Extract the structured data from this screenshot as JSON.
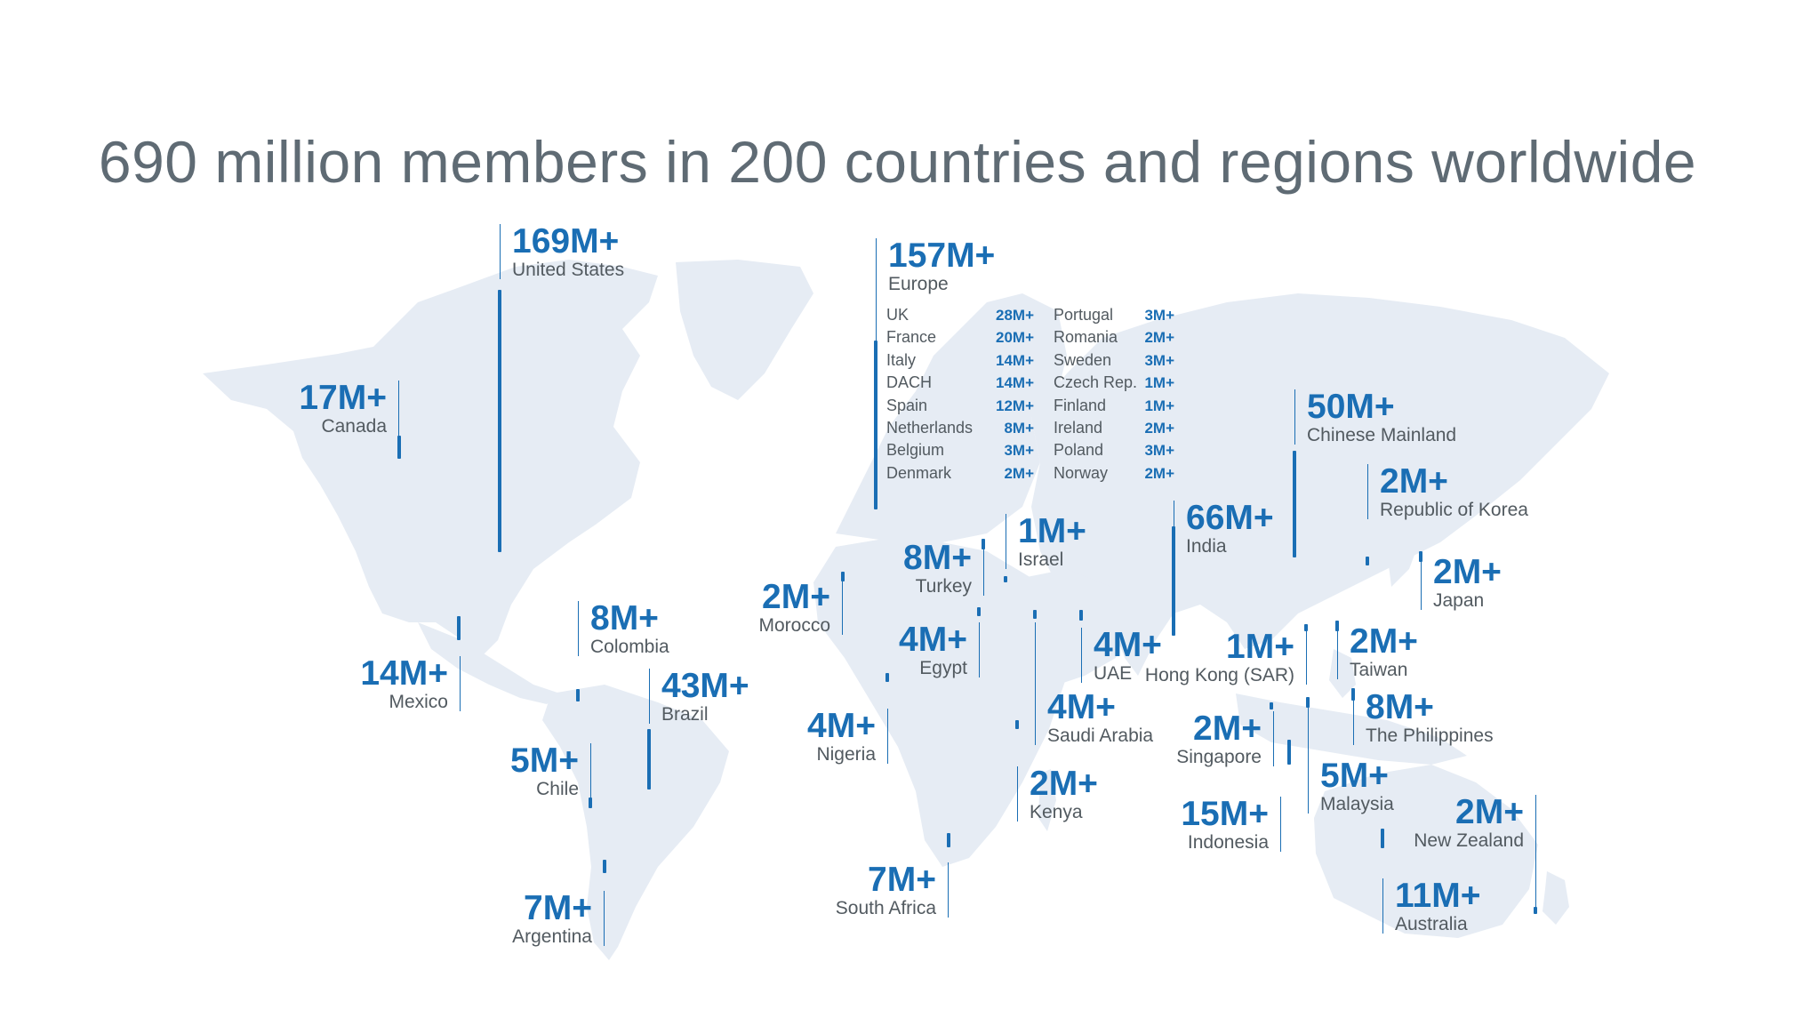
{
  "title": "690 million members in 200 countries and regions worldwide",
  "colors": {
    "accent": "#1a6eb4",
    "land": "#e6ecf4",
    "title": "#5f6b74",
    "label": "#525a60"
  },
  "regions": {
    "united_states": {
      "value": "169M+",
      "label": "United States"
    },
    "canada": {
      "value": "17M+",
      "label": "Canada"
    },
    "mexico": {
      "value": "14M+",
      "label": "Mexico"
    },
    "colombia": {
      "value": "8M+",
      "label": "Colombia"
    },
    "brazil": {
      "value": "43M+",
      "label": "Brazil"
    },
    "chile": {
      "value": "5M+",
      "label": "Chile"
    },
    "argentina": {
      "value": "7M+",
      "label": "Argentina"
    },
    "europe": {
      "value": "157M+",
      "label": "Europe"
    },
    "morocco": {
      "value": "2M+",
      "label": "Morocco"
    },
    "turkey": {
      "value": "8M+",
      "label": "Turkey"
    },
    "israel": {
      "value": "1M+",
      "label": "Israel"
    },
    "egypt": {
      "value": "4M+",
      "label": "Egypt"
    },
    "nigeria": {
      "value": "4M+",
      "label": "Nigeria"
    },
    "uae": {
      "value": "4M+",
      "label": "UAE"
    },
    "saudi_arabia": {
      "value": "4M+",
      "label": "Saudi Arabia"
    },
    "kenya": {
      "value": "2M+",
      "label": "Kenya"
    },
    "south_africa": {
      "value": "7M+",
      "label": "South Africa"
    },
    "india": {
      "value": "66M+",
      "label": "India"
    },
    "chinese_mainland": {
      "value": "50M+",
      "label": "Chinese Mainland"
    },
    "korea": {
      "value": "2M+",
      "label": "Republic of Korea"
    },
    "japan": {
      "value": "2M+",
      "label": "Japan"
    },
    "hong_kong": {
      "value": "1M+",
      "label": "Hong Kong (SAR)"
    },
    "taiwan": {
      "value": "2M+",
      "label": "Taiwan"
    },
    "philippines": {
      "value": "8M+",
      "label": "The Philippines"
    },
    "singapore": {
      "value": "2M+",
      "label": "Singapore"
    },
    "malaysia": {
      "value": "5M+",
      "label": "Malaysia"
    },
    "indonesia": {
      "value": "15M+",
      "label": "Indonesia"
    },
    "new_zealand": {
      "value": "2M+",
      "label": "New Zealand"
    },
    "australia": {
      "value": "11M+",
      "label": "Australia"
    }
  },
  "europe_breakdown": {
    "left": [
      {
        "name": "UK",
        "value": "28M+"
      },
      {
        "name": "France",
        "value": "20M+"
      },
      {
        "name": "Italy",
        "value": "14M+"
      },
      {
        "name": "DACH",
        "value": "14M+"
      },
      {
        "name": "Spain",
        "value": "12M+"
      },
      {
        "name": "Netherlands",
        "value": "8M+"
      },
      {
        "name": "Belgium",
        "value": "3M+"
      },
      {
        "name": "Denmark",
        "value": "2M+"
      }
    ],
    "right": [
      {
        "name": "Portugal",
        "value": "3M+"
      },
      {
        "name": "Romania",
        "value": "2M+"
      },
      {
        "name": "Sweden",
        "value": "3M+"
      },
      {
        "name": "Czech Rep.",
        "value": "1M+"
      },
      {
        "name": "Finland",
        "value": "1M+"
      },
      {
        "name": "Ireland",
        "value": "2M+"
      },
      {
        "name": "Poland",
        "value": "3M+"
      },
      {
        "name": "Norway",
        "value": "2M+"
      }
    ]
  }
}
